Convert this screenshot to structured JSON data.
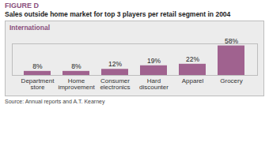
{
  "chart_data": {
    "type": "bar",
    "title": "FIGURE D",
    "subtitle": "Sales outside home market for top 3 players per retail segment in 2004",
    "annotation": "International",
    "source": "Source: Annual reports and A.T. Kearney",
    "categories": [
      "Department store",
      "Home improvement",
      "Consumer electronics",
      "Hard discounter",
      "Apparel",
      "Grocery"
    ],
    "values": [
      8,
      8,
      12,
      19,
      22,
      58
    ],
    "value_labels": [
      "8%",
      "8%",
      "12%",
      "19%",
      "22%",
      "58%"
    ],
    "color": "#a0628f",
    "ylim": [
      0,
      62
    ],
    "data_labels": true,
    "tick_labels": "x"
  }
}
